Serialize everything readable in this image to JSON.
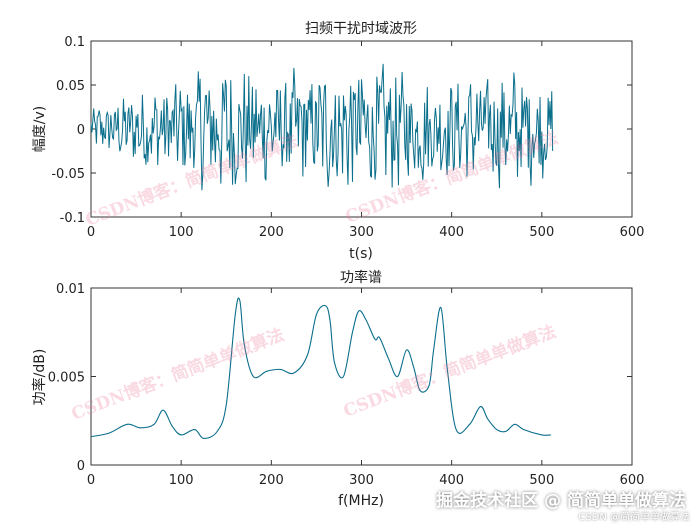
{
  "chart_data": [
    {
      "type": "line",
      "title": "扫频干扰时域波形",
      "xlabel": "t(s)",
      "ylabel": "幅度/v)",
      "xlim": [
        0,
        600
      ],
      "ylim": [
        -0.1,
        0.1
      ],
      "xticks": [
        "0",
        "100",
        "200",
        "300",
        "400",
        "500",
        "600"
      ],
      "yticks": [
        "-0.1",
        "-0.05",
        "0",
        "0.05",
        "0.1"
      ],
      "x_range": [
        0,
        512
      ],
      "noise_profile": [
        [
          0,
          0.015
        ],
        [
          60,
          0.03
        ],
        [
          100,
          0.035
        ],
        [
          130,
          0.05
        ],
        [
          160,
          0.05
        ],
        [
          200,
          0.04
        ],
        [
          260,
          0.045
        ],
        [
          300,
          0.05
        ],
        [
          340,
          0.045
        ],
        [
          400,
          0.035
        ],
        [
          440,
          0.04
        ],
        [
          470,
          0.045
        ],
        [
          512,
          0.035
        ]
      ],
      "color": "#0b6f8c"
    },
    {
      "type": "line",
      "title": "功率谱",
      "xlabel": "f(MHz)",
      "ylabel": "功率/dB)",
      "xlim": [
        0,
        600
      ],
      "ylim": [
        0,
        0.01
      ],
      "xticks": [
        "0",
        "100",
        "200",
        "300",
        "400",
        "500",
        "600"
      ],
      "yticks": [
        "0",
        "0.005",
        "0.01"
      ],
      "x": [
        0,
        20,
        40,
        55,
        70,
        80,
        90,
        100,
        115,
        125,
        140,
        150,
        160,
        165,
        170,
        180,
        195,
        210,
        225,
        240,
        250,
        260,
        265,
        270,
        280,
        290,
        297,
        305,
        315,
        320,
        330,
        340,
        350,
        358,
        365,
        375,
        380,
        388,
        395,
        405,
        420,
        432,
        440,
        450,
        460,
        470,
        480,
        500,
        510
      ],
      "y": [
        0.0016,
        0.0018,
        0.0023,
        0.0021,
        0.0023,
        0.0031,
        0.0022,
        0.0017,
        0.002,
        0.0015,
        0.0019,
        0.0034,
        0.0085,
        0.0093,
        0.0068,
        0.005,
        0.0053,
        0.0054,
        0.0052,
        0.0062,
        0.0085,
        0.009,
        0.0082,
        0.0058,
        0.005,
        0.0075,
        0.0087,
        0.0082,
        0.0071,
        0.0072,
        0.006,
        0.005,
        0.0065,
        0.0055,
        0.0042,
        0.0045,
        0.0065,
        0.0089,
        0.0055,
        0.002,
        0.0023,
        0.0033,
        0.0026,
        0.002,
        0.0019,
        0.0023,
        0.002,
        0.0017,
        0.0017
      ],
      "color": "#0b6f8c"
    }
  ],
  "watermark_text": "CSDN博客：简简单单做算法",
  "brand_text": "掘金技术社区 @ 简简单单做算法",
  "sub_brand_text": "CSDN @简简单单做算法"
}
